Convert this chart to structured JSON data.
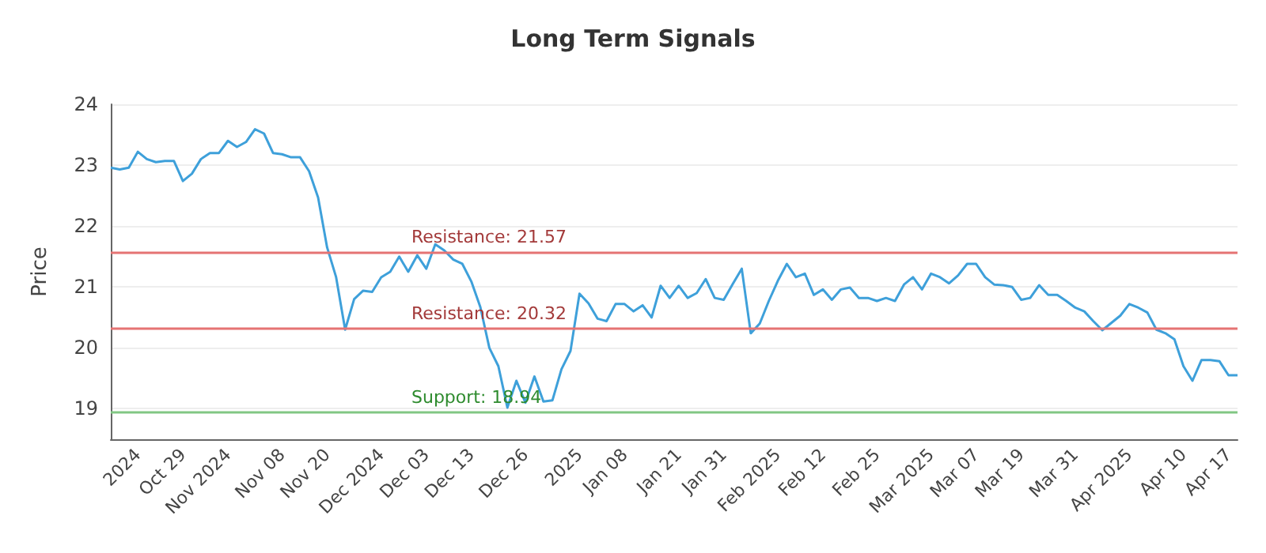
{
  "chart_data": {
    "type": "line",
    "title": "Long Term Signals",
    "ylabel": "Price",
    "categories": [
      null,
      null,
      null,
      "2024",
      null,
      null,
      null,
      null,
      "Oct 29",
      null,
      null,
      null,
      null,
      "Nov 2024",
      null,
      null,
      null,
      null,
      null,
      "Nov 08",
      null,
      null,
      null,
      null,
      "Nov 20",
      null,
      null,
      null,
      null,
      null,
      "Dec 2024",
      null,
      null,
      null,
      null,
      "Dec 03",
      null,
      null,
      null,
      null,
      "Dec 13",
      null,
      null,
      null,
      null,
      null,
      "Dec 26",
      null,
      null,
      null,
      null,
      null,
      "2025",
      null,
      null,
      null,
      null,
      "Jan 08",
      null,
      null,
      null,
      null,
      null,
      "Jan 21",
      null,
      null,
      null,
      null,
      "Jan 31",
      null,
      null,
      null,
      null,
      null,
      "Feb 2025",
      null,
      null,
      null,
      null,
      "Feb 12",
      null,
      null,
      null,
      null,
      null,
      "Feb 25",
      null,
      null,
      null,
      null,
      null,
      "Mar 2025",
      null,
      null,
      null,
      null,
      "Mar 07",
      null,
      null,
      null,
      null,
      "Mar 19",
      null,
      null,
      null,
      null,
      null,
      "Mar 31",
      null,
      null,
      null,
      null,
      null,
      "Apr 2025",
      null,
      null,
      null,
      null,
      null,
      "Apr 10",
      null,
      null,
      null,
      null,
      "Apr 17",
      null
    ],
    "series": [
      {
        "color": "#3ea0da",
        "values": [
          22.96,
          22.93,
          22.96,
          23.22,
          23.1,
          23.05,
          23.07,
          23.07,
          22.74,
          22.86,
          23.1,
          23.2,
          23.2,
          23.4,
          23.3,
          23.38,
          23.59,
          23.52,
          23.2,
          23.18,
          23.13,
          23.13,
          22.9,
          22.47,
          21.65,
          21.16,
          20.3,
          20.8,
          20.94,
          20.92,
          21.16,
          21.25,
          21.5,
          21.25,
          21.52,
          21.3,
          21.7,
          21.6,
          21.45,
          21.38,
          21.09,
          20.67,
          20.0,
          19.7,
          19.02,
          19.46,
          19.1,
          19.53,
          19.12,
          19.14,
          19.65,
          19.95,
          20.89,
          20.73,
          20.48,
          20.44,
          20.72,
          20.72,
          20.6,
          20.7,
          20.5,
          21.02,
          20.82,
          21.02,
          20.82,
          20.9,
          21.13,
          20.82,
          20.79,
          21.05,
          21.3,
          20.24,
          20.4,
          20.77,
          21.1,
          21.38,
          21.16,
          21.22,
          20.87,
          20.96,
          20.79,
          20.96,
          20.99,
          20.82,
          20.82,
          20.77,
          20.82,
          20.77,
          21.04,
          21.16,
          20.96,
          21.22,
          21.16,
          21.06,
          21.19,
          21.38,
          21.38,
          21.16,
          21.04,
          21.03,
          21.0,
          20.79,
          20.82,
          21.03,
          20.87,
          20.87,
          20.77,
          20.66,
          20.6,
          20.44,
          20.29,
          20.41,
          20.53,
          20.72,
          20.66,
          20.58,
          20.3,
          20.24,
          20.14,
          19.7,
          19.46,
          19.8,
          19.8,
          19.78,
          19.55,
          19.55
        ]
      }
    ],
    "ylim": [
      18.5,
      24
    ],
    "yticks": [
      19,
      20,
      21,
      22,
      23,
      24
    ],
    "grid": "y",
    "marker": "none",
    "line_style": "solid",
    "ref_lines": [
      {
        "axis": "y",
        "value": 21.57,
        "label": "Resistance: 21.57",
        "color": "#e57373"
      },
      {
        "axis": "y",
        "value": 20.32,
        "label": "Resistance: 20.32",
        "color": "#e57373"
      },
      {
        "axis": "y",
        "value": 18.94,
        "label": "Support: 18.94",
        "color": "#81c784"
      }
    ]
  }
}
